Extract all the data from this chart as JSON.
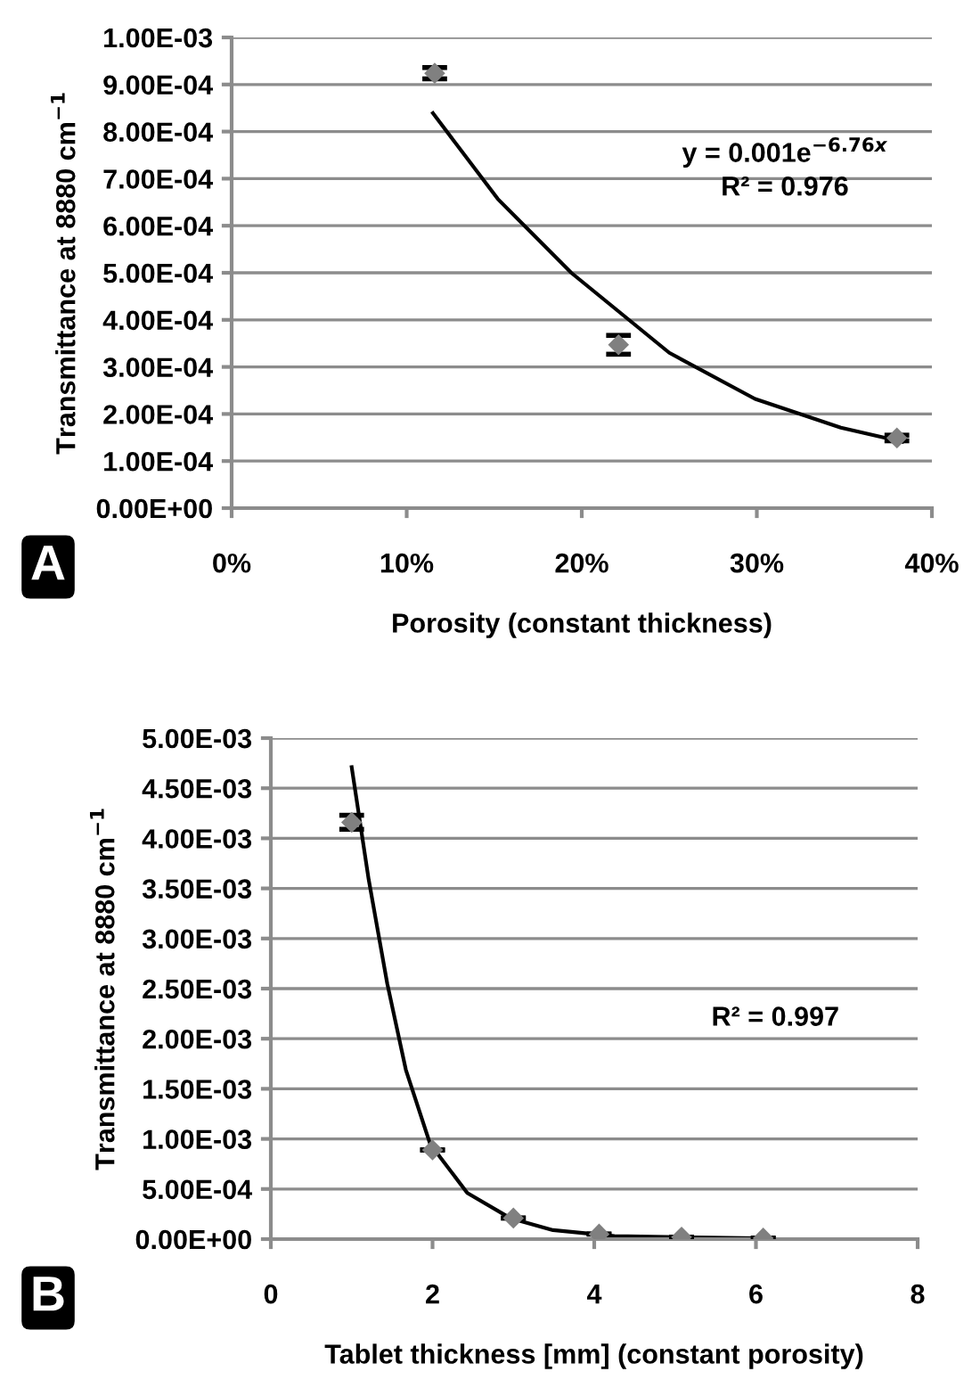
{
  "chart_data": [
    {
      "type": "scatter",
      "xlabel": "Porosity (constant thickness)",
      "ylabel": "Transmittance at 8880 cm$^{−1}$",
      "annotations": [
        "y = 0.001e$^{−6.76x}$\nR² = 0.976",
        "A"
      ],
      "series": [
        {
          "marker": "diamond",
          "color": "#808080",
          "x": [
            0.116,
            0.221,
            0.38
          ],
          "values": [
            0.000924,
            0.000347,
            0.000149
          ],
          "errors": [
            1.2e-05,
            2e-05,
            6e-06
          ]
        },
        {
          "type": "line",
          "color": "#000000",
          "x": [
            0.115,
            0.152,
            0.194,
            0.25,
            0.299,
            0.348,
            0.383
          ],
          "values": [
            0.000839,
            0.000657,
            0.0005,
            0.00033,
            0.000232,
            0.000171,
            0.000141
          ]
        }
      ],
      "xlim": [
        0,
        0.4
      ],
      "xticks": [
        {
          "value": 0,
          "label": "0%"
        },
        {
          "value": 0.1,
          "label": "10%"
        },
        {
          "value": 0.2,
          "label": "20%"
        },
        {
          "value": 0.3,
          "label": "30%"
        },
        {
          "value": 0.4,
          "label": "40%"
        }
      ],
      "ylim": [
        0,
        0.001
      ],
      "yticks": [
        {
          "value": 0,
          "label": "0.00E+00"
        },
        {
          "value": 0.0001,
          "label": "1.00E-04"
        },
        {
          "value": 0.0002,
          "label": "2.00E-04"
        },
        {
          "value": 0.0003,
          "label": "3.00E-04"
        },
        {
          "value": 0.0004,
          "label": "4.00E-04"
        },
        {
          "value": 0.0005,
          "label": "5.00E-04"
        },
        {
          "value": 0.0006,
          "label": "6.00E-04"
        },
        {
          "value": 0.0007,
          "label": "7.00E-04"
        },
        {
          "value": 0.0008,
          "label": "8.00E-04"
        },
        {
          "value": 0.0009,
          "label": "9.00E-04"
        },
        {
          "value": 0.001,
          "label": "1.00E-03"
        }
      ],
      "grid": "y"
    },
    {
      "type": "scatter",
      "xlabel": "Tablet thickness [mm] (constant porosity)",
      "ylabel": "Transmittance at 8880 cm$^{−1}$",
      "annotations": [
        "R² = 0.997",
        "B"
      ],
      "series": [
        {
          "marker": "diamond",
          "color": "#808080",
          "x": [
            1.0,
            2.0,
            3.0,
            4.06,
            5.08,
            6.09
          ],
          "values": [
            0.00416,
            0.00089,
            0.00021,
            5e-05,
            2e-05,
            1e-05
          ],
          "errors": [
            7e-05,
            null,
            null,
            null,
            null,
            null
          ]
        },
        {
          "type": "line",
          "color": "#000000",
          "x": [
            1.0,
            1.21,
            1.44,
            1.67,
            1.97,
            2.43,
            2.96,
            3.49,
            4.25,
            6.22
          ],
          "values": [
            0.00471,
            0.00359,
            0.00255,
            0.00169,
            0.00095,
            0.00046,
            0.00021,
            9e-05,
            3e-05,
            6e-06
          ]
        }
      ],
      "xlim": [
        0,
        8
      ],
      "xticks": [
        0,
        2,
        4,
        6,
        8
      ],
      "ylim": [
        0,
        0.005
      ],
      "yticks": [
        {
          "value": 0,
          "label": "0.00E+00"
        },
        {
          "value": 0.0005,
          "label": "5.00E-04"
        },
        {
          "value": 0.001,
          "label": "1.00E-03"
        },
        {
          "value": 0.0015,
          "label": "1.50E-03"
        },
        {
          "value": 0.002,
          "label": "2.00E-03"
        },
        {
          "value": 0.0025,
          "label": "2.50E-03"
        },
        {
          "value": 0.003,
          "label": "3.00E-03"
        },
        {
          "value": 0.0035,
          "label": "3.50E-03"
        },
        {
          "value": 0.004,
          "label": "4.00E-03"
        },
        {
          "value": 0.0045,
          "label": "4.50E-03"
        },
        {
          "value": 0.005,
          "label": "5.00E-03"
        }
      ],
      "grid": "y"
    }
  ]
}
